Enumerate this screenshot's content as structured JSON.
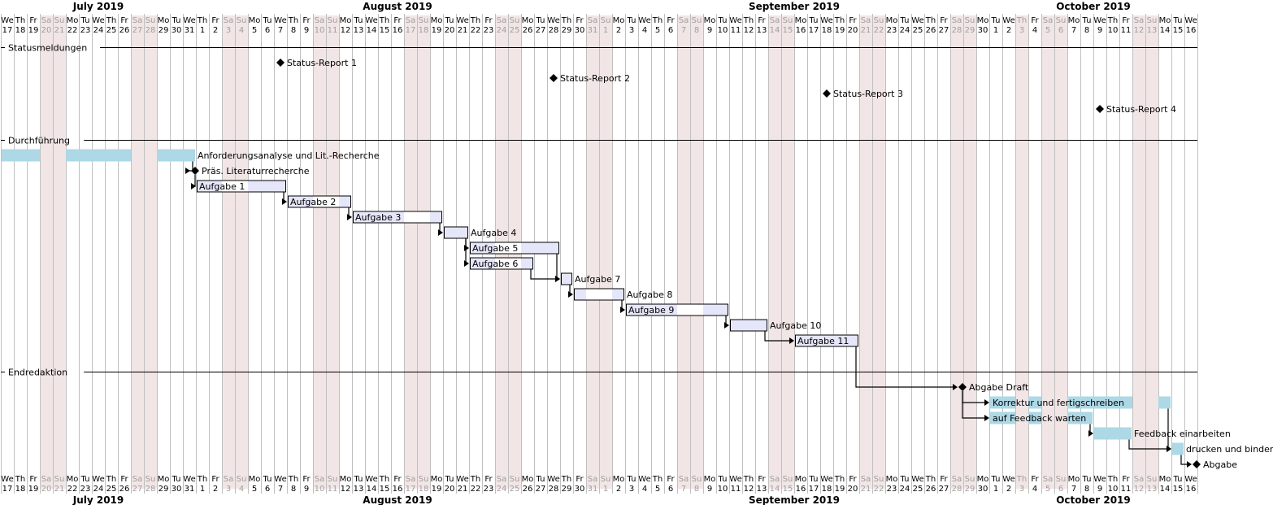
{
  "start_date": "2019-07-17",
  "end_date": "2019-10-16",
  "colors": {
    "weekend_bg": "#f1e5e5",
    "grid_line": "#c0c0c0",
    "bar_light_blue": "#add8e6",
    "bar_lavender": "#e6e6fa",
    "bar_border": "#000000",
    "milestone": "#000000",
    "text": "#000000",
    "weekend_text": "#a0a0a0"
  },
  "months": [
    {
      "label": "July 2019",
      "start": "2019-07-17",
      "end": "2019-07-31"
    },
    {
      "label": "August 2019",
      "start": "2019-08-01",
      "end": "2019-08-31"
    },
    {
      "label": "September 2019",
      "start": "2019-09-01",
      "end": "2019-09-30"
    },
    {
      "label": "October 2019",
      "start": "2019-10-01",
      "end": "2019-10-16"
    }
  ],
  "day_abbrev": [
    "Su",
    "Mo",
    "Tu",
    "We",
    "Th",
    "Fr",
    "Sa"
  ],
  "closed_days": [
    "2019-10-03"
  ],
  "sections": [
    {
      "name": "Statusmeldungen",
      "row": 0
    },
    {
      "name": "Durchführung",
      "row": 6
    },
    {
      "name": "Endredaktion",
      "row": 21
    }
  ],
  "tasks": [
    {
      "id": "s1",
      "name": "Status-Report 1",
      "type": "milestone",
      "start": "2019-08-07",
      "row": 1
    },
    {
      "id": "s2",
      "name": "Status-Report 2",
      "type": "milestone",
      "start": "2019-08-28",
      "row": 2
    },
    {
      "id": "s3",
      "name": "Status-Report 3",
      "type": "milestone",
      "start": "2019-09-18",
      "row": 3
    },
    {
      "id": "s4",
      "name": "Status-Report 4",
      "type": "milestone",
      "start": "2019-10-09",
      "row": 4
    },
    {
      "id": "a0",
      "name": "Anforderungsanalyse und Lit.-Recherche",
      "type": "bar",
      "style": "blue",
      "start": "2019-07-17",
      "end": "2019-07-31",
      "row": 7,
      "label_pos": "right"
    },
    {
      "id": "m1",
      "name": "Präs. Literaturrecherche",
      "type": "milestone",
      "start": "2019-07-31",
      "row": 8
    },
    {
      "id": "t1",
      "name": "Aufgabe 1",
      "type": "bar",
      "style": "lavender",
      "start": "2019-08-01",
      "end": "2019-08-07",
      "row": 9,
      "label_pos": "inside"
    },
    {
      "id": "t2",
      "name": "Aufgabe 2",
      "type": "bar",
      "style": "lavender",
      "start": "2019-08-08",
      "end": "2019-08-12",
      "row": 10,
      "label_pos": "inside"
    },
    {
      "id": "t3",
      "name": "Aufgabe 3",
      "type": "bar",
      "style": "lavender",
      "start": "2019-08-13",
      "end": "2019-08-19",
      "row": 11,
      "label_pos": "inside"
    },
    {
      "id": "t4",
      "name": "Aufgabe 4",
      "type": "bar",
      "style": "lavender",
      "start": "2019-08-20",
      "end": "2019-08-21",
      "row": 12,
      "label_pos": "right"
    },
    {
      "id": "t5",
      "name": "Aufgabe 5",
      "type": "bar",
      "style": "lavender",
      "start": "2019-08-22",
      "end": "2019-08-28",
      "row": 13,
      "label_pos": "inside"
    },
    {
      "id": "t6",
      "name": "Aufgabe 6",
      "type": "bar",
      "style": "lavender",
      "start": "2019-08-22",
      "end": "2019-08-26",
      "row": 14,
      "label_pos": "inside"
    },
    {
      "id": "t7",
      "name": "Aufgabe 7",
      "type": "bar",
      "style": "lavender",
      "start": "2019-08-29",
      "end": "2019-08-29",
      "row": 15,
      "label_pos": "right"
    },
    {
      "id": "t8",
      "name": "Aufgabe 8",
      "type": "bar",
      "style": "lavender",
      "start": "2019-08-30",
      "end": "2019-09-02",
      "row": 16,
      "label_pos": "right"
    },
    {
      "id": "t9",
      "name": "Aufgabe 9",
      "type": "bar",
      "style": "lavender",
      "start": "2019-09-03",
      "end": "2019-09-10",
      "row": 17,
      "label_pos": "inside"
    },
    {
      "id": "t10",
      "name": "Aufgabe 10",
      "type": "bar",
      "style": "lavender",
      "start": "2019-09-11",
      "end": "2019-09-13",
      "row": 18,
      "label_pos": "right"
    },
    {
      "id": "t11",
      "name": "Aufgabe 11",
      "type": "bar",
      "style": "lavender",
      "start": "2019-09-16",
      "end": "2019-09-20",
      "row": 19,
      "label_pos": "inside"
    },
    {
      "id": "d1",
      "name": "Abgabe Draft",
      "type": "milestone",
      "start": "2019-09-28",
      "row": 22
    },
    {
      "id": "k1",
      "name": "Korrektur und fertigschreiben",
      "type": "bar",
      "style": "blue",
      "start": "2019-10-01",
      "end": "2019-10-14",
      "row": 23,
      "label_pos": "inside"
    },
    {
      "id": "f1",
      "name": "auf Feedback warten",
      "type": "bar",
      "style": "blue",
      "start": "2019-10-01",
      "end": "2019-10-08",
      "row": 24,
      "label_pos": "inside"
    },
    {
      "id": "e1",
      "name": "Feedback einarbeiten",
      "type": "bar",
      "style": "blue",
      "start": "2019-10-09",
      "end": "2019-10-11",
      "row": 25,
      "label_pos": "right"
    },
    {
      "id": "p1",
      "name": "drucken und binden",
      "type": "bar",
      "style": "blue",
      "start": "2019-10-15",
      "end": "2019-10-15",
      "row": 26,
      "label_pos": "right"
    },
    {
      "id": "g1",
      "name": "Abgabe",
      "type": "milestone",
      "start": "2019-10-16",
      "row": 27
    }
  ],
  "links": [
    [
      "a0",
      "m1"
    ],
    [
      "m1",
      "t1"
    ],
    [
      "t1",
      "t2"
    ],
    [
      "t2",
      "t3"
    ],
    [
      "t3",
      "t4"
    ],
    [
      "t4",
      "t5"
    ],
    [
      "t4",
      "t6"
    ],
    [
      "t5",
      "t7"
    ],
    [
      "t6",
      "t7"
    ],
    [
      "t7",
      "t8"
    ],
    [
      "t8",
      "t9"
    ],
    [
      "t9",
      "t10"
    ],
    [
      "t10",
      "t11"
    ],
    [
      "t11",
      "d1"
    ],
    [
      "d1",
      "k1"
    ],
    [
      "d1",
      "f1"
    ],
    [
      "f1",
      "e1"
    ],
    [
      "k1",
      "p1"
    ],
    [
      "e1",
      "p1"
    ],
    [
      "p1",
      "g1"
    ]
  ]
}
